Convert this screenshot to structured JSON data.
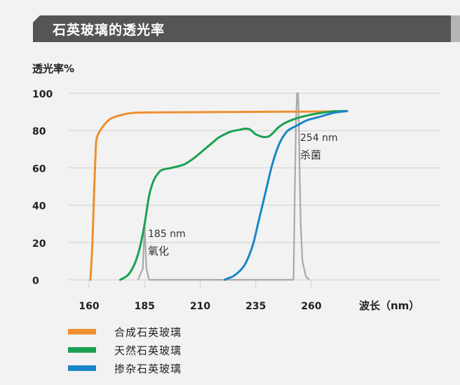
{
  "header": {
    "title": "石英玻璃的透光率"
  },
  "chart_data": {
    "type": "line",
    "title": "石英玻璃的透光率",
    "ylabel": "透光率%",
    "xlabel": "波长（nm）",
    "xlim": [
      160,
      270
    ],
    "ylim": [
      0,
      100
    ],
    "x_ticks": [
      160,
      185,
      210,
      235,
      260
    ],
    "y_ticks": [
      0,
      20,
      40,
      60,
      80,
      100
    ],
    "grid": "horizontal",
    "legend_position": "bottom-left",
    "series": [
      {
        "name": "合成石英玻璃",
        "color": "#ef8f2f",
        "x": [
          160.6,
          161.5,
          162.3,
          163.0,
          163.5,
          165.0,
          167.5,
          170.0,
          175.0,
          180.0,
          185.0,
          200.0,
          230.0,
          260.0,
          276.0
        ],
        "y": [
          0,
          20,
          48,
          70,
          76,
          80,
          84,
          86.5,
          88.5,
          89.5,
          89.7,
          89.8,
          90.0,
          90.2,
          90.3
        ]
      },
      {
        "name": "天然石英玻璃",
        "color": "#1ba152",
        "x": [
          174.0,
          177.0,
          179.0,
          181.0,
          183.0,
          185.0,
          187.0,
          189.0,
          191.0,
          193.0,
          197.0,
          203.0,
          208.0,
          212.0,
          216.0,
          218.0,
          221.0,
          224.0,
          228.0,
          230.0,
          232.0,
          233.0,
          234.0,
          235.0,
          237.0,
          239.0,
          241.0,
          243.0,
          245.0,
          248.0,
          252.0,
          256.0,
          262.0,
          270.0,
          276.0
        ],
        "y": [
          0,
          2,
          5,
          10,
          18,
          30,
          45,
          53,
          57,
          59,
          60,
          62,
          66,
          70,
          74,
          76,
          78,
          79.5,
          80.5,
          81,
          80.8,
          80,
          79,
          78,
          77,
          76.5,
          77,
          79,
          81.5,
          84,
          86,
          87.5,
          89,
          90.3,
          90.5
        ]
      },
      {
        "name": "掺杂石英玻璃",
        "color": "#1a86c9",
        "x": [
          221.0,
          223.0,
          225.0,
          228.0,
          230.0,
          232.0,
          234.0,
          236.0,
          238.0,
          240.0,
          242.0,
          244.0,
          246.0,
          248.0,
          250.0,
          254.0,
          258.0,
          264.0,
          270.0,
          276.0
        ],
        "y": [
          0,
          1,
          2,
          5,
          8,
          13,
          20,
          30,
          40,
          50,
          60,
          68,
          74,
          78,
          80.5,
          83,
          85.5,
          87.5,
          89.5,
          90.5
        ]
      }
    ],
    "emission_lines": [
      {
        "x": [
          182.0,
          184.2,
          185.0,
          185.8,
          187.0
        ],
        "y": [
          0,
          6,
          29,
          6,
          0
        ],
        "color": "#a9a9a9"
      },
      {
        "x": [
          252.0,
          252.6,
          253.1,
          253.6,
          254.0,
          254.3,
          254.7,
          255.2,
          256.0,
          257.5,
          259.0
        ],
        "y": [
          0,
          50,
          85,
          100,
          100,
          90,
          60,
          30,
          10,
          2,
          0
        ],
        "color": "#a9a9a9"
      }
    ],
    "annotations": [
      {
        "id": "a185",
        "line1": "185 nm",
        "line2": "氧化"
      },
      {
        "id": "a254",
        "line1": "254 nm",
        "line2": "杀菌"
      }
    ]
  },
  "legend": {
    "items": [
      {
        "label": "合成石英玻璃",
        "color": "#ef8f2f"
      },
      {
        "label": "天然石英玻璃",
        "color": "#1ba152"
      },
      {
        "label": "掺杂石英玻璃",
        "color": "#1a86c9"
      }
    ]
  }
}
